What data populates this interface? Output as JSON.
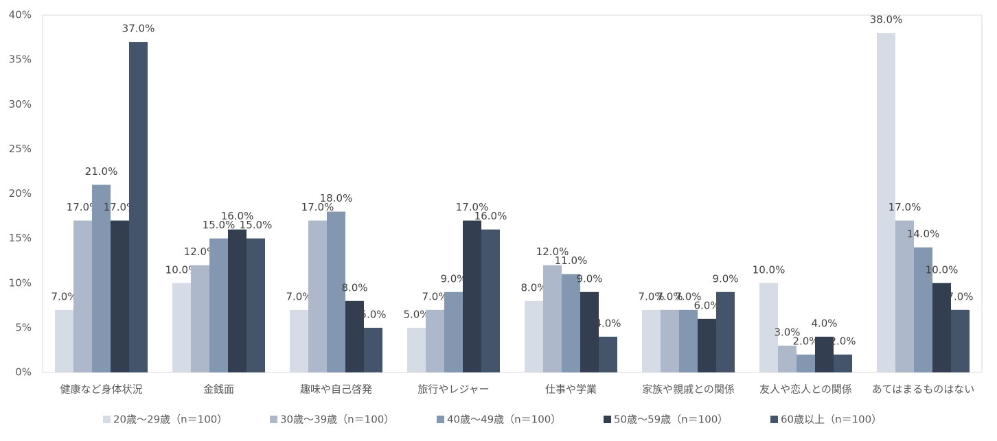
{
  "chart_data": {
    "type": "bar",
    "categories": [
      "健康など身体状況",
      "金銭面",
      "趣味や自己啓発",
      "旅行やレジャー",
      "仕事や学業",
      "家族や親戚との関係",
      "友人や恋人との関係",
      "あてはまるものはない"
    ],
    "series": [
      {
        "name": "20歳～29歳（n＝100）",
        "color": "#d6dce5",
        "values": [
          7,
          10,
          7,
          5,
          8,
          7,
          10,
          38
        ],
        "value_labels": [
          "7.0%",
          "10.0%",
          "7.0%",
          "5.0%",
          "8.0%",
          "7.0%",
          "10.0%",
          "38.0%"
        ]
      },
      {
        "name": "30歳～39歳（n＝100）",
        "color": "#adb9ca",
        "values": [
          17,
          12,
          17,
          7,
          12,
          7,
          3,
          17
        ],
        "value_labels": [
          "17.0%",
          "12.0%",
          "17.0%",
          "7.0%",
          "12.0%",
          "7.0%",
          "3.0%",
          "17.0%"
        ]
      },
      {
        "name": "40歳～49歳（n＝100）",
        "color": "#8497b0",
        "values": [
          21,
          15,
          18,
          9,
          11,
          7,
          2,
          14
        ],
        "value_labels": [
          "21.0%",
          "15.0%",
          "18.0%",
          "9.0%",
          "11.0%",
          "7.0%",
          "2.0%",
          "14.0%"
        ]
      },
      {
        "name": "50歳～59歳（n＝100）",
        "color": "#333f50",
        "values": [
          17,
          16,
          8,
          17,
          9,
          6,
          4,
          10
        ],
        "value_labels": [
          "17.0%",
          "16.0%",
          "8.0%",
          "17.0%",
          "9.0%",
          "6.0%",
          "4.0%",
          "10.0%"
        ]
      },
      {
        "name": "60歳以上（n＝100）",
        "color": "#44546a",
        "values": [
          37,
          15,
          5,
          16,
          4,
          9,
          2,
          7
        ],
        "value_labels": [
          "37.0%",
          "15.0%",
          "5.0%",
          "16.0%",
          "4.0%",
          "9.0%",
          "2.0%",
          "7.0%"
        ]
      }
    ],
    "ylim": [
      0,
      40
    ],
    "yticks": [
      {
        "value": 0,
        "label": "0%"
      },
      {
        "value": 5,
        "label": "5%"
      },
      {
        "value": 10,
        "label": "10%"
      },
      {
        "value": 15,
        "label": "15%"
      },
      {
        "value": 20,
        "label": "20%"
      },
      {
        "value": 25,
        "label": "25%"
      },
      {
        "value": 30,
        "label": "30%"
      },
      {
        "value": 35,
        "label": "35%"
      },
      {
        "value": 40,
        "label": "40%"
      }
    ],
    "grid": false,
    "legend": "bottom"
  }
}
